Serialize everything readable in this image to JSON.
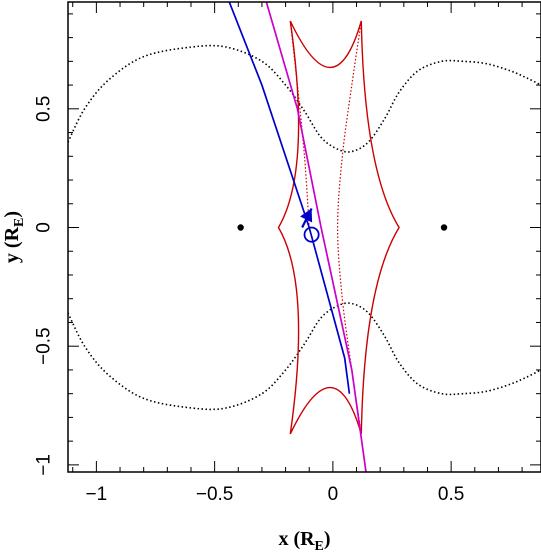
{
  "chart_data": {
    "type": "line",
    "title": "",
    "xlabel": {
      "main": "x (R",
      "sub": "E",
      "close": ")"
    },
    "ylabel": {
      "main": "y (R",
      "sub": "E",
      "close": ")"
    },
    "xlim": [
      -1.12,
      0.88
    ],
    "ylim": [
      -1.03,
      0.95
    ],
    "x_ticks": [
      {
        "value": -1,
        "label": "−1"
      },
      {
        "value": -0.5,
        "label": "−0.5"
      },
      {
        "value": 0,
        "label": "0"
      },
      {
        "value": 0.5,
        "label": "0.5"
      }
    ],
    "y_ticks": [
      {
        "value": 0.5,
        "label": "0.5"
      },
      {
        "value": 0,
        "label": "0"
      },
      {
        "value": -0.5,
        "label": "−0.5"
      },
      {
        "value": -1,
        "label": "−1"
      }
    ],
    "lens_positions": [
      {
        "x": -0.39,
        "y": 0.0
      },
      {
        "x": 0.47,
        "y": 0.0
      }
    ],
    "critical_curve_upper": [
      [
        -1.12,
        0.36
      ],
      [
        -1.05,
        0.5
      ],
      [
        -0.95,
        0.62
      ],
      [
        -0.8,
        0.72
      ],
      [
        -0.6,
        0.76
      ],
      [
        -0.45,
        0.76
      ],
      [
        -0.3,
        0.7
      ],
      [
        -0.2,
        0.6
      ],
      [
        -0.12,
        0.49
      ],
      [
        -0.05,
        0.38
      ],
      [
        0.02,
        0.33
      ],
      [
        0.08,
        0.32
      ],
      [
        0.15,
        0.36
      ],
      [
        0.22,
        0.46
      ],
      [
        0.28,
        0.57
      ],
      [
        0.36,
        0.66
      ],
      [
        0.46,
        0.7
      ],
      [
        0.55,
        0.7
      ],
      [
        0.65,
        0.69
      ],
      [
        0.75,
        0.66
      ],
      [
        0.82,
        0.63
      ],
      [
        0.88,
        0.6
      ]
    ],
    "critical_curve_lower": [
      [
        -1.12,
        -0.36
      ],
      [
        -1.05,
        -0.5
      ],
      [
        -0.95,
        -0.62
      ],
      [
        -0.8,
        -0.72
      ],
      [
        -0.6,
        -0.76
      ],
      [
        -0.45,
        -0.76
      ],
      [
        -0.3,
        -0.7
      ],
      [
        -0.2,
        -0.6
      ],
      [
        -0.12,
        -0.49
      ],
      [
        -0.05,
        -0.38
      ],
      [
        0.02,
        -0.33
      ],
      [
        0.08,
        -0.32
      ],
      [
        0.15,
        -0.36
      ],
      [
        0.22,
        -0.46
      ],
      [
        0.28,
        -0.57
      ],
      [
        0.36,
        -0.66
      ],
      [
        0.46,
        -0.7
      ],
      [
        0.55,
        -0.7
      ],
      [
        0.65,
        -0.69
      ],
      [
        0.75,
        -0.66
      ],
      [
        0.82,
        -0.63
      ],
      [
        0.88,
        -0.6
      ]
    ],
    "caustic": {
      "cusps": [
        [
          -0.18,
          0.87
        ],
        [
          0.12,
          0.87
        ],
        [
          0.28,
          0.0
        ],
        [
          0.12,
          -0.87
        ],
        [
          -0.18,
          -0.87
        ],
        [
          -0.23,
          0.0
        ]
      ],
      "inner_segments": [
        [
          [
            0.12,
            0.87
          ],
          [
            0.08,
            0.6
          ],
          [
            0.04,
            0.3
          ],
          [
            0.02,
            0.0
          ],
          [
            0.04,
            -0.3
          ],
          [
            0.08,
            -0.6
          ],
          [
            0.12,
            -0.87
          ]
        ],
        [
          [
            -0.18,
            0.87
          ],
          [
            -0.15,
            0.6
          ],
          [
            -0.12,
            0.3
          ],
          [
            -0.1,
            0.0
          ]
        ]
      ]
    },
    "series": [
      {
        "values": [
          [
            -0.45,
            0.98
          ],
          [
            -0.3,
            0.6
          ],
          [
            -0.1,
            0.0
          ],
          [
            0.05,
            -0.55
          ],
          [
            0.07,
            -0.7
          ]
        ]
      },
      {
        "values": [
          [
            -0.29,
            0.98
          ],
          [
            -0.15,
            0.5
          ],
          [
            -0.05,
            0.0
          ],
          [
            0.08,
            -0.6
          ],
          [
            0.14,
            -1.03
          ]
        ]
      }
    ],
    "source": {
      "x": -0.09,
      "y": -0.03,
      "radius": 0.03
    },
    "arrow": {
      "from": [
        -0.13,
        0.0
      ],
      "to": [
        -0.09,
        0.08
      ]
    },
    "colors": {
      "critical": "#000000",
      "caustic": "#cc0000",
      "trajectory_blue": "#0000cc",
      "trajectory_magenta": "#cc00cc",
      "source": "#0000cc"
    },
    "grid": false
  }
}
